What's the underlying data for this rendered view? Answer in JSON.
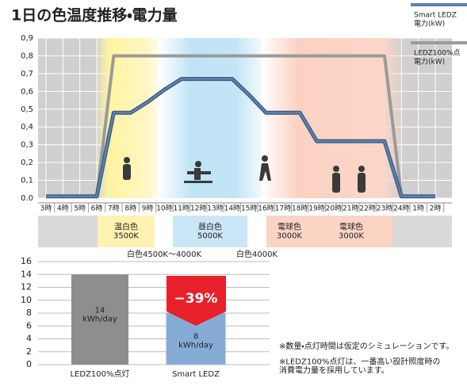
{
  "chart_data": [
    {
      "type": "line",
      "title": "1日の色温度推移・電力量",
      "categories": [
        "3時",
        "4時",
        "5時",
        "6時",
        "7時",
        "8時",
        "9時",
        "10時",
        "11時",
        "12時",
        "13時",
        "14時",
        "15時",
        "16時",
        "17時",
        "18時",
        "19時",
        "20時",
        "21時",
        "22時",
        "23時",
        "24時",
        "1時",
        "2時"
      ],
      "ylim": [
        0,
        0.9
      ],
      "yticks": [
        {
          "value": 0,
          "label": "0.0"
        },
        {
          "value": 0.1,
          "label": "0,1"
        },
        {
          "value": 0.2,
          "label": "0,2"
        },
        {
          "value": 0.3,
          "label": "0,3"
        },
        {
          "value": 0.4,
          "label": "0,4"
        },
        {
          "value": 0.5,
          "label": "0,5"
        },
        {
          "value": 0.6,
          "label": "0,6"
        },
        {
          "value": 0.7,
          "label": "0,7"
        },
        {
          "value": 0.8,
          "label": "0,8"
        },
        {
          "value": 0.9,
          "label": "0,9"
        }
      ],
      "grid": true,
      "legend": "top-right",
      "series": [
        {
          "name": "Smart LEDZ\n電力(kW)",
          "color": "#5b80ab",
          "values": [
            0.01,
            0.01,
            0.01,
            0.01,
            0.48,
            0.48,
            0.54,
            0.61,
            0.67,
            0.67,
            0.67,
            0.67,
            0.58,
            0.48,
            0.48,
            0.48,
            0.32,
            0.32,
            0.32,
            0.32,
            0.32,
            0.01,
            0.01,
            0.01
          ]
        },
        {
          "name": "LEDZ100%点\n電力(kW)",
          "color": "#9a9a9a",
          "values": [
            0.01,
            0.01,
            0.01,
            0.01,
            0.8,
            0.8,
            0.8,
            0.8,
            0.8,
            0.8,
            0.8,
            0.8,
            0.8,
            0.8,
            0.8,
            0.8,
            0.8,
            0.8,
            0.8,
            0.8,
            0.8,
            0.01,
            0.01,
            0.01
          ]
        }
      ]
    },
    {
      "type": "bar",
      "categories": [
        "LEDZ100%点灯",
        "Smart LEDZ"
      ],
      "values": [
        14,
        8
      ],
      "value_labels": [
        "14\nkWh/day",
        "8\nkWh/day"
      ],
      "colors": [
        "#8e8e90",
        "#86acd6"
      ],
      "ylim": [
        0,
        16
      ],
      "yticks": [
        0,
        2,
        4,
        6,
        8,
        10,
        12,
        14,
        16
      ],
      "grid": true,
      "annotation": "−39%"
    }
  ],
  "color_temperature": {
    "bands": [
      "温白色\n3500K",
      "昼白色\n5000K",
      "電球色\n3000K",
      "電球色\n3000K"
    ],
    "transitions": [
      "白色4500K～4000K",
      "白色4000K"
    ]
  },
  "notes": [
    "※数量・点灯時間は仮定のシミュレーションです。",
    "※LEDZ100%点灯は、一番高い設計照度時の\n消費電力量を採用しています。"
  ]
}
